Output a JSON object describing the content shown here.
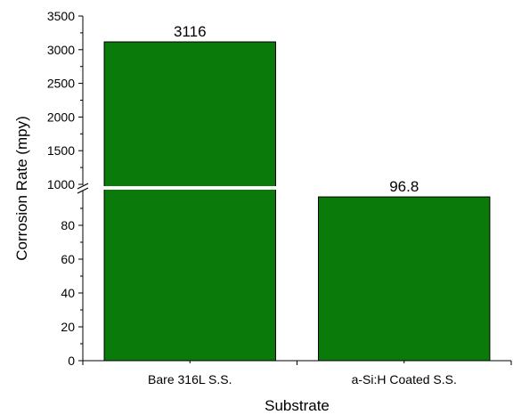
{
  "chart_data": {
    "type": "bar",
    "title": "",
    "xlabel": "Substrate",
    "ylabel": "Corrosion Rate (mpy)",
    "categories": [
      "Bare 316L S.S.",
      "a-Si:H Coated S.S."
    ],
    "values": [
      3116,
      96.8
    ],
    "data_labels": [
      "3116",
      "96.8"
    ],
    "y_axis_break": true,
    "lower_segment": {
      "ylim": [
        0,
        100
      ],
      "ticks": [
        0,
        20,
        40,
        60,
        80
      ]
    },
    "upper_segment": {
      "ylim": [
        1000,
        3500
      ],
      "ticks": [
        1000,
        1500,
        2000,
        2500,
        3000,
        3500
      ]
    },
    "grid": false,
    "legend": "none",
    "bar_color": "#0a7a0a",
    "bar_edge_color": "#000000"
  }
}
